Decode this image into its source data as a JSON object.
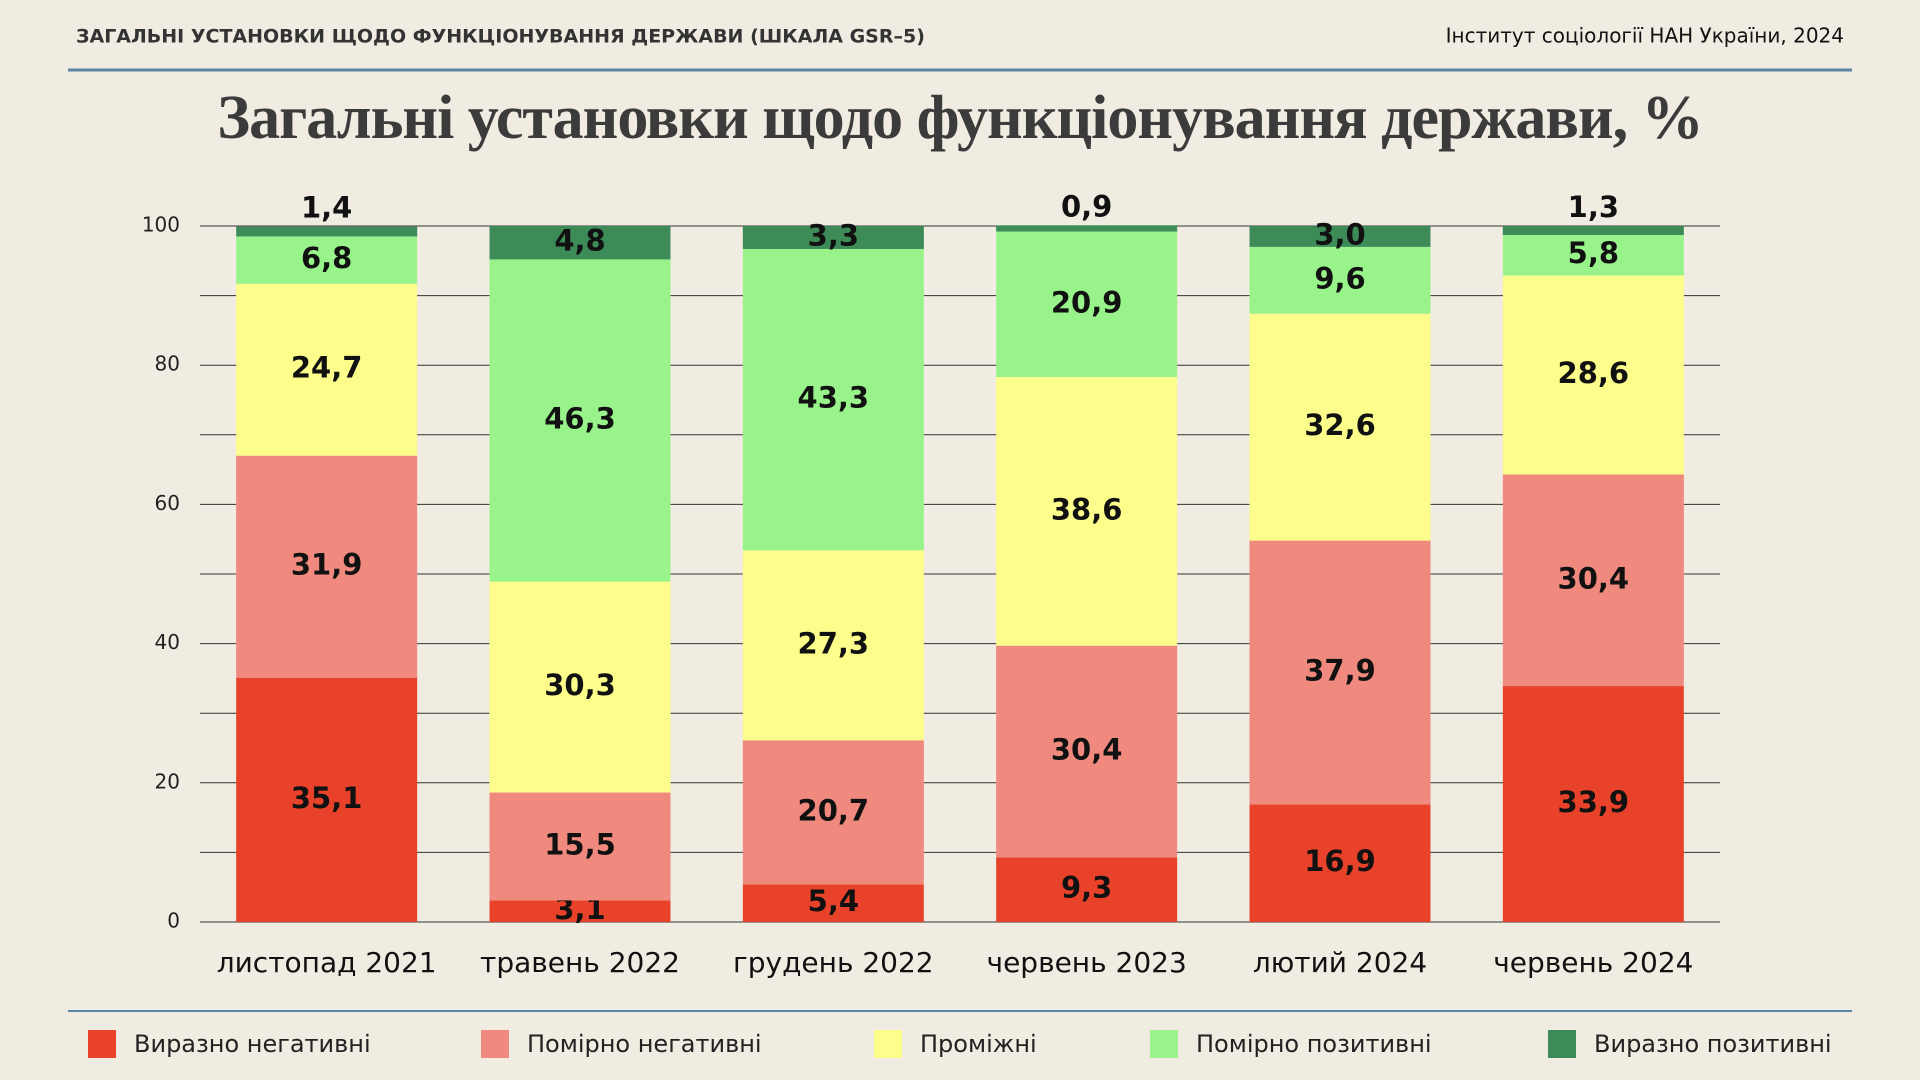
{
  "header": {
    "left": "ЗАГАЛЬНІ УСТАНОВКИ ЩОДО ФУНКЦІОНУВАННЯ ДЕРЖАВИ (ШКАЛА GSR–5)",
    "right": "Інститут соціології НАН України, 2024"
  },
  "chart_data": {
    "type": "stacked_bar",
    "title": "Загальні установки щодо функціонування держави, %",
    "categories": [
      "листопад 2021",
      "травень 2022",
      "грудень 2022",
      "червень 2023",
      "лютий 2024",
      "червень 2024"
    ],
    "series": [
      {
        "name": "Виразно негативні",
        "color": "#e8432a",
        "values": [
          35.1,
          3.1,
          5.4,
          9.3,
          16.9,
          33.9
        ],
        "value_labels": [
          "35,1",
          "3,1",
          "5,4",
          "9,3",
          "16,9",
          "33,9"
        ]
      },
      {
        "name": "Помірно негативні",
        "color": "#f08a7e",
        "values": [
          31.9,
          15.5,
          20.7,
          30.4,
          37.9,
          30.4
        ],
        "value_labels": [
          "31,9",
          "15,5",
          "20,7",
          "30,4",
          "37,9",
          "30,4"
        ]
      },
      {
        "name": "Проміжні",
        "color": "#fdfd8c",
        "values": [
          24.7,
          30.3,
          27.3,
          38.6,
          32.6,
          28.6
        ],
        "value_labels": [
          "24,7",
          "30,3",
          "27,3",
          "38,6",
          "32,6",
          "28,6"
        ]
      },
      {
        "name": "Помірно позитивні",
        "color": "#98f48a",
        "values": [
          6.8,
          46.3,
          43.3,
          20.9,
          9.6,
          5.8
        ],
        "value_labels": [
          "6,8",
          "46,3",
          "43,3",
          "20,9",
          "9,6",
          "5,8"
        ]
      },
      {
        "name": "Виразно позитивні",
        "color": "#3d8b57",
        "values": [
          1.4,
          4.8,
          3.3,
          0.9,
          3.0,
          1.3
        ],
        "value_labels": [
          "1,4",
          "4,8",
          "3,3",
          "0,9",
          "3,0",
          "1,3"
        ]
      }
    ],
    "ylim": [
      0,
      100
    ],
    "yticks": [
      0,
      20,
      40,
      60,
      80,
      100
    ],
    "y_minor_ticks": [
      10,
      30,
      50,
      70,
      90
    ],
    "grid": true,
    "legend": "bottom"
  }
}
